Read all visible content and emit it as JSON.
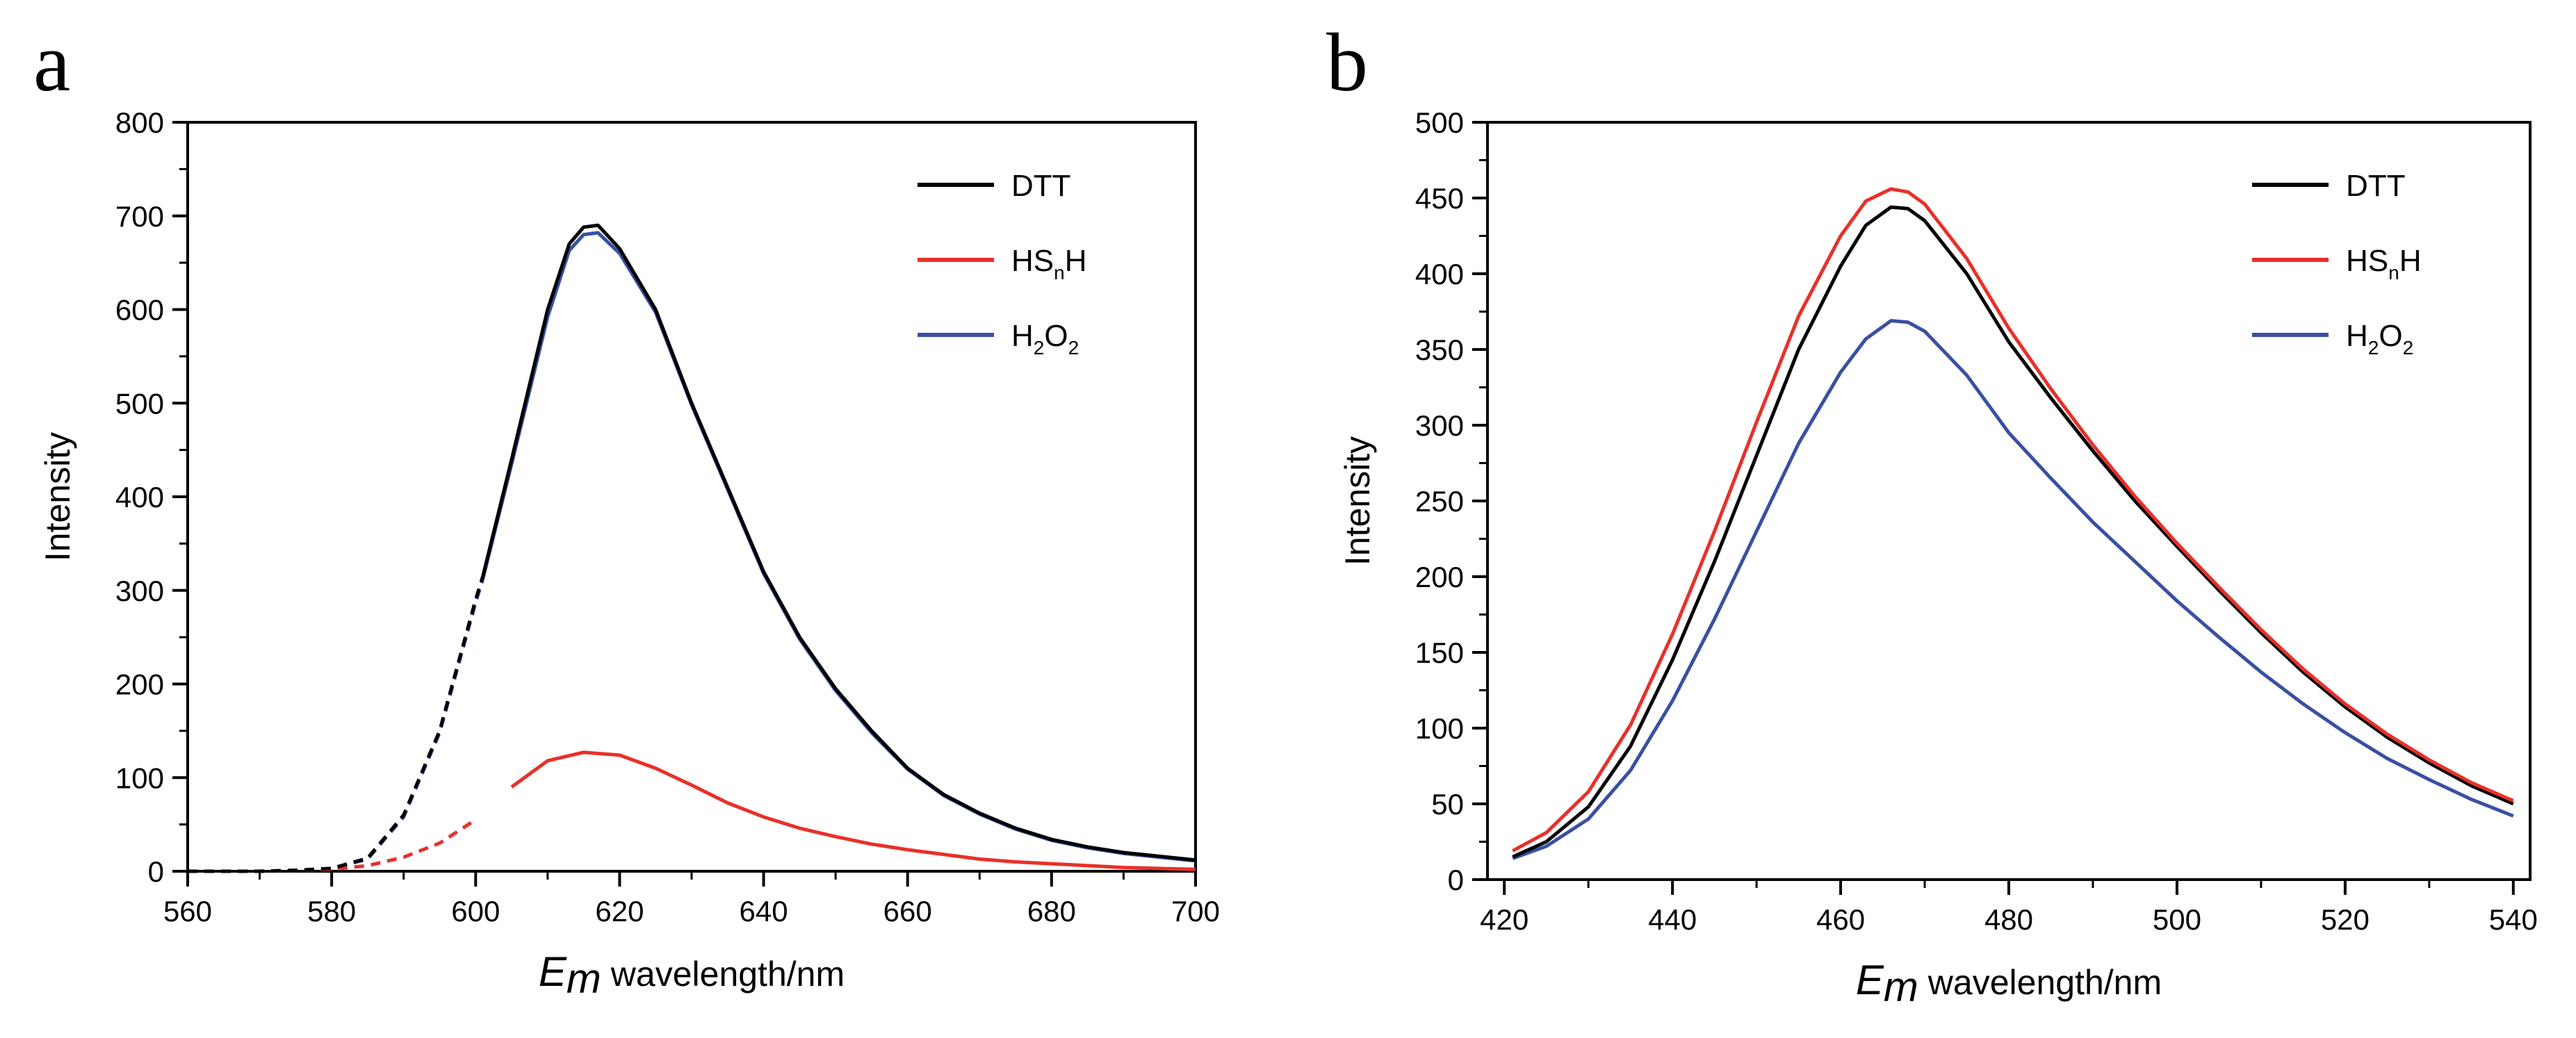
{
  "chart_data": [
    {
      "panel_letter": "a",
      "type": "line",
      "xlabel": {
        "italic": "E",
        "sub": "m",
        "rest": " wavelength/nm"
      },
      "ylabel": "Intensity",
      "xlim": [
        560,
        700
      ],
      "ylim": [
        0,
        800
      ],
      "xticks": [
        560,
        580,
        600,
        620,
        640,
        660,
        680,
        700
      ],
      "yticks": [
        0,
        100,
        200,
        300,
        400,
        500,
        600,
        700,
        800
      ],
      "legend_position": "top-right",
      "solid_start": 601,
      "series": [
        {
          "name": "DTT",
          "label_base": "DTT",
          "color": "#000000",
          "dashed_before": 601,
          "points": [
            [
              560,
              0
            ],
            [
              570,
              0
            ],
            [
              575,
              1
            ],
            [
              580,
              3
            ],
            [
              585,
              14
            ],
            [
              590,
              60
            ],
            [
              595,
              150
            ],
            [
              600,
              290
            ],
            [
              601,
              315
            ],
            [
              605,
              440
            ],
            [
              610,
              600
            ],
            [
              613,
              670
            ],
            [
              615,
              688
            ],
            [
              617,
              690
            ],
            [
              620,
              665
            ],
            [
              625,
              600
            ],
            [
              630,
              500
            ],
            [
              635,
              410
            ],
            [
              640,
              320
            ],
            [
              645,
              250
            ],
            [
              650,
              195
            ],
            [
              655,
              150
            ],
            [
              660,
              110
            ],
            [
              665,
              82
            ],
            [
              670,
              62
            ],
            [
              675,
              46
            ],
            [
              680,
              34
            ],
            [
              685,
              26
            ],
            [
              690,
              20
            ],
            [
              695,
              16
            ],
            [
              700,
              12
            ]
          ]
        },
        {
          "name": "HSnH",
          "label_base": "HS",
          "label_sub": "n",
          "label_tail": "H",
          "color": "#e8302a",
          "dashed_before": 601,
          "points": [
            [
              560,
              0
            ],
            [
              570,
              0
            ],
            [
              580,
              2
            ],
            [
              585,
              6
            ],
            [
              590,
              15
            ],
            [
              595,
              30
            ],
            [
              600,
              55
            ],
            [
              605,
              90
            ],
            [
              610,
              118
            ],
            [
              615,
              127
            ],
            [
              620,
              124
            ],
            [
              625,
              110
            ],
            [
              630,
              92
            ],
            [
              635,
              73
            ],
            [
              640,
              58
            ],
            [
              645,
              46
            ],
            [
              650,
              37
            ],
            [
              655,
              29
            ],
            [
              660,
              23
            ],
            [
              665,
              18
            ],
            [
              670,
              13
            ],
            [
              675,
              10
            ],
            [
              680,
              8
            ],
            [
              685,
              6
            ],
            [
              690,
              4
            ],
            [
              695,
              3
            ],
            [
              700,
              2
            ]
          ]
        },
        {
          "name": "H2O2",
          "label_base": "H",
          "label_sub": "2",
          "label_tail": "O",
          "label_sub2": "2",
          "color": "#3a4fa3",
          "dashed_before": 601,
          "points": [
            [
              560,
              0
            ],
            [
              570,
              0
            ],
            [
              575,
              1
            ],
            [
              580,
              3
            ],
            [
              585,
              13
            ],
            [
              590,
              58
            ],
            [
              595,
              148
            ],
            [
              600,
              287
            ],
            [
              601,
              312
            ],
            [
              605,
              435
            ],
            [
              610,
              592
            ],
            [
              613,
              663
            ],
            [
              615,
              680
            ],
            [
              617,
              682
            ],
            [
              620,
              660
            ],
            [
              625,
              597
            ],
            [
              630,
              498
            ],
            [
              635,
              408
            ],
            [
              640,
              318
            ],
            [
              645,
              248
            ],
            [
              650,
              193
            ],
            [
              655,
              148
            ],
            [
              660,
              109
            ],
            [
              665,
              81
            ],
            [
              670,
              61
            ],
            [
              675,
              45
            ],
            [
              680,
              33
            ],
            [
              685,
              25
            ],
            [
              690,
              19
            ],
            [
              695,
              15
            ],
            [
              700,
              11
            ]
          ]
        }
      ]
    },
    {
      "panel_letter": "b",
      "type": "line",
      "xlabel": {
        "italic": "E",
        "sub": "m",
        "rest": " wavelength/nm"
      },
      "ylabel": "Intensity",
      "xlim": [
        418,
        542
      ],
      "ylim": [
        0,
        500
      ],
      "xticks": [
        420,
        440,
        460,
        480,
        500,
        520,
        540
      ],
      "yticks": [
        0,
        50,
        100,
        150,
        200,
        250,
        300,
        350,
        400,
        450,
        500
      ],
      "legend_position": "top-right",
      "series": [
        {
          "name": "DTT",
          "label_base": "DTT",
          "color": "#000000",
          "points": [
            [
              421,
              15
            ],
            [
              425,
              25
            ],
            [
              430,
              48
            ],
            [
              435,
              88
            ],
            [
              440,
              145
            ],
            [
              445,
              210
            ],
            [
              450,
              280
            ],
            [
              455,
              350
            ],
            [
              460,
              405
            ],
            [
              463,
              432
            ],
            [
              466,
              444
            ],
            [
              468,
              443
            ],
            [
              470,
              435
            ],
            [
              475,
              400
            ],
            [
              480,
              355
            ],
            [
              485,
              318
            ],
            [
              490,
              283
            ],
            [
              495,
              250
            ],
            [
              500,
              220
            ],
            [
              505,
              191
            ],
            [
              510,
              163
            ],
            [
              515,
              137
            ],
            [
              520,
              114
            ],
            [
              525,
              94
            ],
            [
              530,
              77
            ],
            [
              535,
              62
            ],
            [
              540,
              50
            ]
          ]
        },
        {
          "name": "HSnH",
          "label_base": "HS",
          "label_sub": "n",
          "label_tail": "H",
          "color": "#e8302a",
          "points": [
            [
              421,
              19
            ],
            [
              425,
              31
            ],
            [
              430,
              58
            ],
            [
              435,
              102
            ],
            [
              440,
              162
            ],
            [
              445,
              230
            ],
            [
              450,
              302
            ],
            [
              455,
              372
            ],
            [
              460,
              425
            ],
            [
              463,
              448
            ],
            [
              466,
              456
            ],
            [
              468,
              454
            ],
            [
              470,
              446
            ],
            [
              475,
              410
            ],
            [
              480,
              364
            ],
            [
              485,
              324
            ],
            [
              490,
              287
            ],
            [
              495,
              253
            ],
            [
              500,
              222
            ],
            [
              505,
              193
            ],
            [
              510,
              165
            ],
            [
              515,
              139
            ],
            [
              520,
              116
            ],
            [
              525,
              96
            ],
            [
              530,
              79
            ],
            [
              535,
              64
            ],
            [
              540,
              52
            ]
          ]
        },
        {
          "name": "H2O2",
          "label_base": "H",
          "label_sub": "2",
          "label_tail": "O",
          "label_sub2": "2",
          "color": "#3a4fa3",
          "points": [
            [
              421,
              14
            ],
            [
              425,
              22
            ],
            [
              430,
              40
            ],
            [
              435,
              72
            ],
            [
              440,
              118
            ],
            [
              445,
              172
            ],
            [
              450,
              230
            ],
            [
              455,
              288
            ],
            [
              460,
              335
            ],
            [
              463,
              357
            ],
            [
              466,
              369
            ],
            [
              468,
              368
            ],
            [
              470,
              362
            ],
            [
              475,
              333
            ],
            [
              480,
              295
            ],
            [
              485,
              265
            ],
            [
              490,
              236
            ],
            [
              495,
              210
            ],
            [
              500,
              184
            ],
            [
              505,
              160
            ],
            [
              510,
              137
            ],
            [
              515,
              116
            ],
            [
              520,
              97
            ],
            [
              525,
              80
            ],
            [
              530,
              66
            ],
            [
              535,
              53
            ],
            [
              540,
              42
            ]
          ]
        }
      ]
    }
  ]
}
